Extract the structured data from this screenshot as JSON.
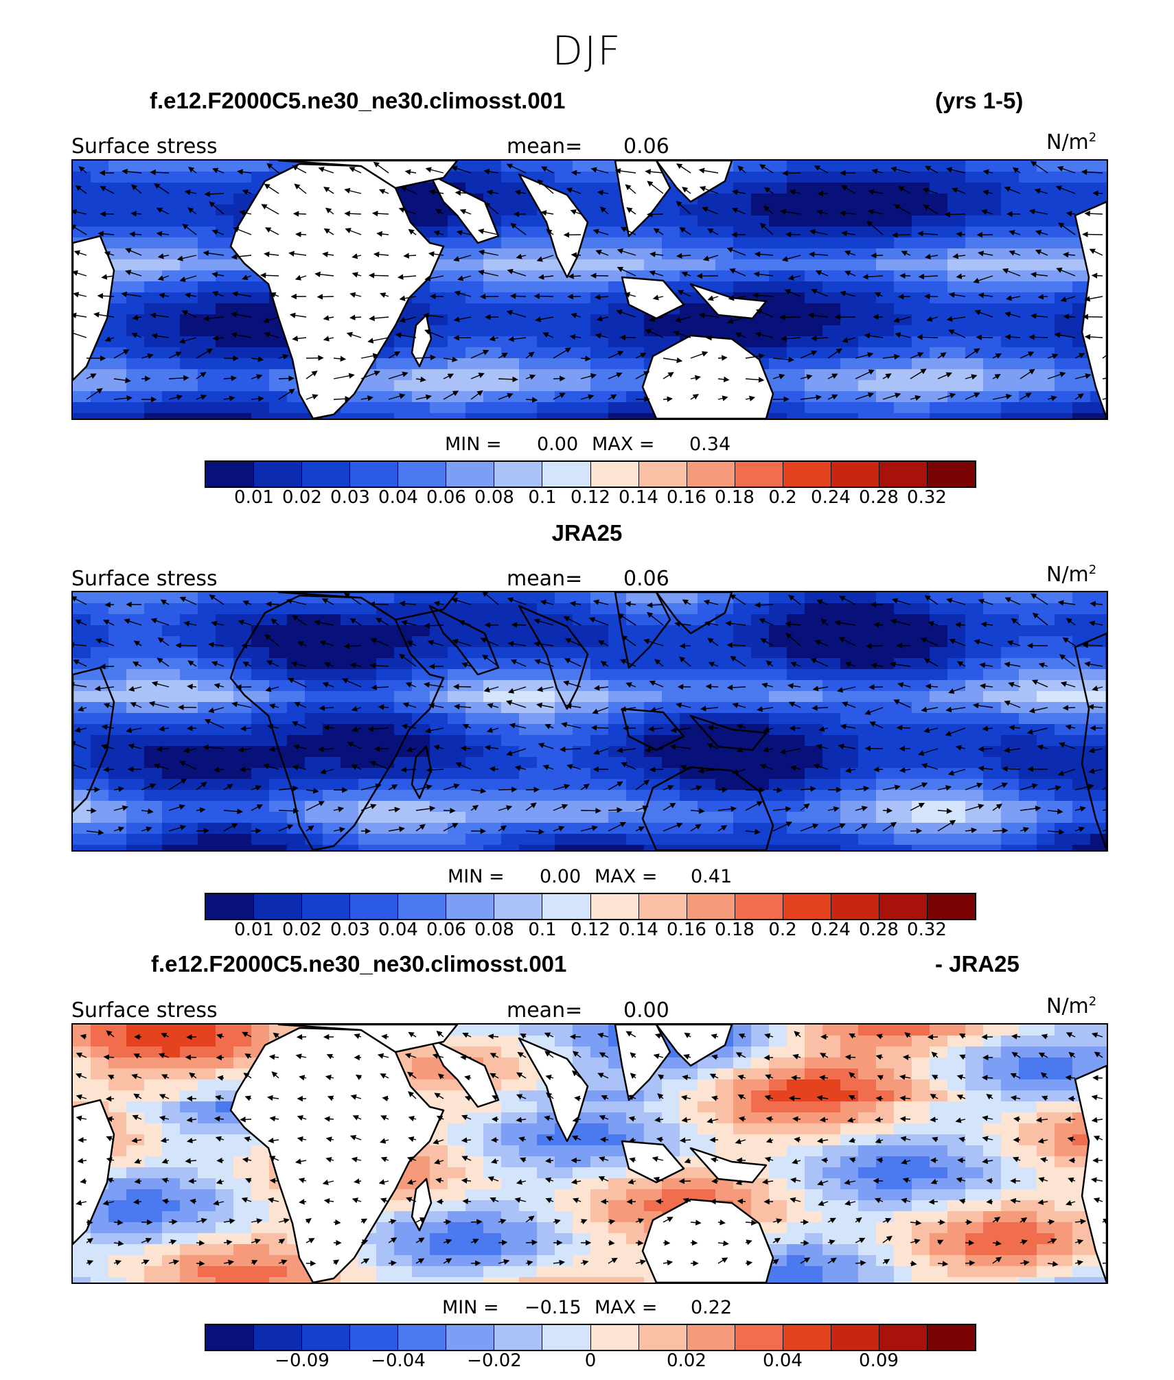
{
  "season": "DJF",
  "variable_label": "Surface stress",
  "mean_label": "mean=",
  "units_base": "N/m",
  "units_exp": "2",
  "min_label": "MIN =",
  "max_label": "MAX =",
  "colors": {
    "abs_scale": [
      "#08107a",
      "#0b2bb0",
      "#1440d0",
      "#2a5ae6",
      "#4b7af0",
      "#7d9ef5",
      "#aac2f7",
      "#d3e4fb",
      "#fde3d2",
      "#f9c0a6",
      "#f59b7b",
      "#f06e4e",
      "#e5421f",
      "#c8260f",
      "#a7120a",
      "#7a0303"
    ],
    "diff_scale": [
      "#08107a",
      "#0b2bb0",
      "#1440d0",
      "#2a5ae6",
      "#4b7af0",
      "#7d9ef5",
      "#aac2f7",
      "#d3e4fb",
      "#fde3d2",
      "#f9c0a6",
      "#f59b7b",
      "#f06e4e",
      "#e5421f",
      "#c8260f",
      "#a7120a",
      "#7a0303"
    ],
    "land": "#ffffff",
    "coastline": "#000000",
    "vector": "#000000"
  },
  "panels": [
    {
      "title_left": "f.e12.F2000C5.ne30_ne30.climosst.001",
      "title_right": "(yrs 1-5)",
      "mean": "0.06",
      "min": "0.00",
      "max": "0.34",
      "field": "model",
      "ticks": [
        "0.01",
        "0.02",
        "0.03",
        "0.04",
        "0.06",
        "0.08",
        "0.1",
        "0.12",
        "0.14",
        "0.16",
        "0.18",
        "0.2",
        "0.24",
        "0.28",
        "0.32"
      ]
    },
    {
      "title_left": "",
      "title_center": "JRA25",
      "title_right": "",
      "mean": "0.06",
      "min": "0.00",
      "max": "0.41",
      "field": "obs",
      "ticks": [
        "0.01",
        "0.02",
        "0.03",
        "0.04",
        "0.06",
        "0.08",
        "0.1",
        "0.12",
        "0.14",
        "0.16",
        "0.18",
        "0.2",
        "0.24",
        "0.28",
        "0.32"
      ]
    },
    {
      "title_left": "f.e12.F2000C5.ne30_ne30.climosst.001",
      "title_right": "- JRA25",
      "mean": "0.00",
      "min": "−0.15",
      "max": "0.22",
      "field": "diff",
      "ticks": [
        "",
        "−0.09",
        "",
        "−0.04",
        "",
        "−0.02",
        "",
        "0",
        "",
        "0.02",
        "",
        "0.04",
        "",
        "0.09",
        ""
      ]
    }
  ]
}
